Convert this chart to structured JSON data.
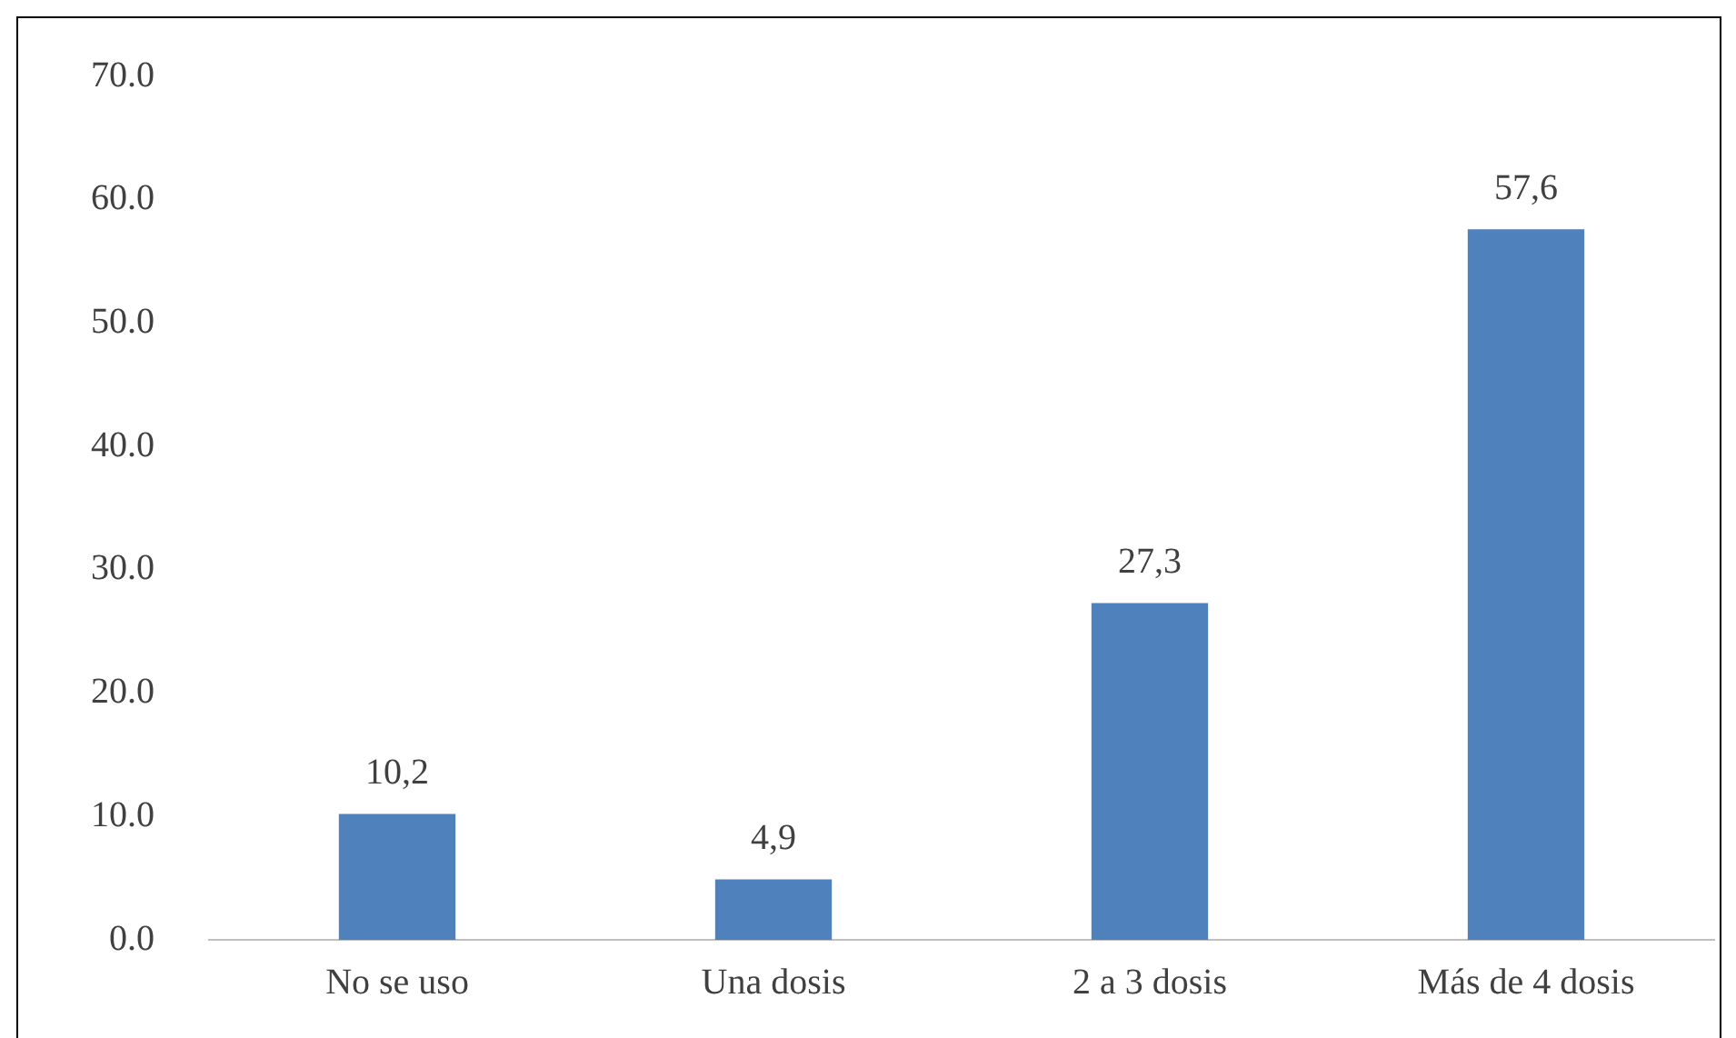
{
  "chart_data": {
    "type": "bar",
    "categories": [
      "No se uso",
      "Una dosis",
      "2 a 3 dosis",
      "Más de 4 dosis"
    ],
    "values": [
      10.2,
      4.9,
      27.3,
      57.6
    ],
    "value_labels": [
      "10,2",
      "4,9",
      "27,3",
      "57,6"
    ],
    "color": "#4f81bd",
    "ylim": [
      0,
      70
    ],
    "yticks": [
      {
        "value": 0,
        "label": "0.0"
      },
      {
        "value": 10,
        "label": "10.0"
      },
      {
        "value": 20,
        "label": "20.0"
      },
      {
        "value": 30,
        "label": "30.0"
      },
      {
        "value": 40,
        "label": "40.0"
      },
      {
        "value": 50,
        "label": "50.0"
      },
      {
        "value": 60,
        "label": "60.0"
      },
      {
        "value": 70,
        "label": "70.0"
      }
    ],
    "grid": false,
    "legend": false
  }
}
